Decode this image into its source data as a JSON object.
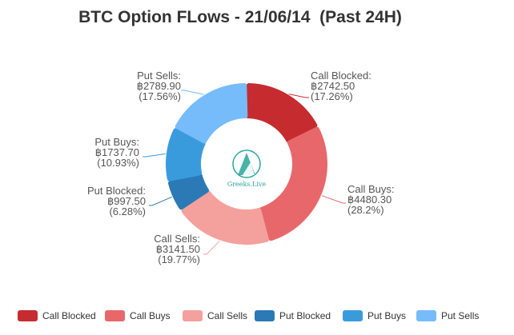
{
  "chart_data": {
    "type": "pie",
    "variant": "rounded-donut",
    "title": "BTC Option FLows - 21/06/14  (Past 24H)",
    "legend_position": "bottom",
    "center_logo_text": "Greeks.Live",
    "slices": [
      {
        "name": "Call Blocked",
        "value": 2742.5,
        "label_name": "Call Blocked:",
        "label_value": "฿2742.50",
        "label_pct": "(17.26%)",
        "color": "#c62b30"
      },
      {
        "name": "Call Buys",
        "value": 4480.3,
        "label_name": "Call Buys:",
        "label_value": "฿4480.30",
        "label_pct": "(28.2%)",
        "color": "#e8676b"
      },
      {
        "name": "Call Sells",
        "value": 3141.5,
        "label_name": "Call Sells:",
        "label_value": "฿3141.50",
        "label_pct": "(19.77%)",
        "color": "#f4a09d"
      },
      {
        "name": "Put Blocked",
        "value": 997.5,
        "label_name": "Put Blocked:",
        "label_value": "฿997.50",
        "label_pct": "(6.28%)",
        "color": "#2b7ab6"
      },
      {
        "name": "Put Buys",
        "value": 1737.7,
        "label_name": "Put Buys:",
        "label_value": "฿1737.70",
        "label_pct": "(10.93%)",
        "color": "#3a9bdc"
      },
      {
        "name": "Put Sells",
        "value": 2789.9,
        "label_name": "Put Sells:",
        "label_value": "฿2789.90",
        "label_pct": "(17.56%)",
        "color": "#76bcfa"
      }
    ]
  }
}
